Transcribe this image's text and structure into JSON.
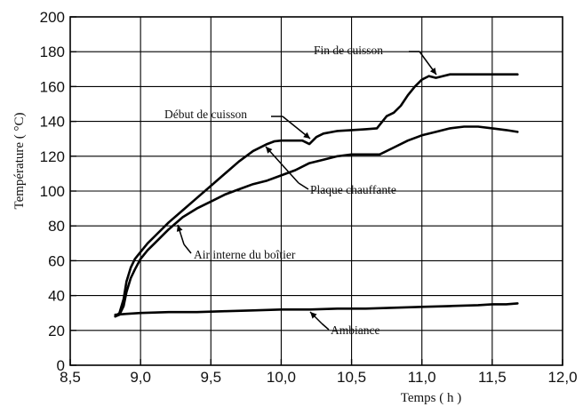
{
  "chart_data": {
    "type": "line",
    "xlabel": "Temps ( h )",
    "ylabel": "Température ( °C)",
    "xlim": [
      8.5,
      12.0
    ],
    "ylim": [
      0,
      200
    ],
    "x_ticks": [
      "8,5",
      "9,0",
      "9,5",
      "10,0",
      "10,5",
      "11,0",
      "11,5",
      "12,0"
    ],
    "y_ticks": [
      "0",
      "20",
      "40",
      "60",
      "80",
      "100",
      "120",
      "140",
      "160",
      "180",
      "200"
    ],
    "grid": true,
    "series": [
      {
        "name": "Air interne du boîtier",
        "x": [
          8.82,
          8.85,
          8.88,
          8.9,
          8.93,
          8.96,
          9.0,
          9.05,
          9.1,
          9.2,
          9.3,
          9.4,
          9.5,
          9.6,
          9.7,
          9.8,
          9.9,
          9.95,
          10.0,
          10.05,
          10.1,
          10.15,
          10.2,
          10.25,
          10.3,
          10.4,
          10.5,
          10.6,
          10.68,
          10.72,
          10.75,
          10.8,
          10.85,
          10.9,
          10.95,
          11.0,
          11.05,
          11.1,
          11.15,
          11.2,
          11.3,
          11.4,
          11.5,
          11.6,
          11.68
        ],
        "y": [
          28,
          30,
          38,
          48,
          56,
          61,
          65,
          70,
          74,
          82,
          89,
          96,
          103,
          110,
          117,
          123,
          127,
          128.5,
          129,
          129,
          129,
          129,
          127,
          131,
          133,
          134.5,
          135,
          135.5,
          136,
          140,
          143,
          145,
          149,
          155,
          160,
          164,
          166,
          165,
          166,
          167,
          167,
          167,
          167,
          167,
          167
        ]
      },
      {
        "name": "Plaque chauffante",
        "x": [
          8.82,
          8.85,
          8.88,
          8.9,
          8.93,
          8.96,
          9.0,
          9.05,
          9.1,
          9.2,
          9.3,
          9.4,
          9.5,
          9.6,
          9.7,
          9.8,
          9.9,
          10.0,
          10.1,
          10.2,
          10.3,
          10.4,
          10.5,
          10.6,
          10.7,
          10.8,
          10.9,
          11.0,
          11.1,
          11.2,
          11.3,
          11.4,
          11.5,
          11.6,
          11.68
        ],
        "y": [
          28,
          29,
          34,
          42,
          50,
          55,
          61,
          66,
          70,
          78,
          85,
          90,
          94,
          98,
          101,
          104,
          106,
          109,
          112,
          116,
          118,
          120,
          121,
          121,
          121,
          125,
          129,
          132,
          134,
          136,
          137,
          137,
          136,
          135,
          134
        ]
      },
      {
        "name": "Ambiance",
        "x": [
          8.82,
          8.9,
          9.0,
          9.2,
          9.4,
          9.6,
          9.8,
          10.0,
          10.2,
          10.4,
          10.6,
          10.8,
          11.0,
          11.2,
          11.4,
          11.5,
          11.6,
          11.68
        ],
        "y": [
          29,
          29.5,
          30,
          30.5,
          30.5,
          31,
          31.5,
          32,
          32,
          32.5,
          32.5,
          33,
          33.5,
          34,
          34.5,
          35,
          35,
          35.5
        ]
      }
    ],
    "annotations": [
      {
        "text": "Fin de cuisson",
        "x": 11.05,
        "y": 166
      },
      {
        "text": "Début de cuisson",
        "x": 10.2,
        "y": 127
      },
      {
        "text": "Plaque chauffante",
        "x": 9.9,
        "y": 126
      },
      {
        "text": "Air interne du  boîtier",
        "x": 9.2,
        "y": 80
      },
      {
        "text": "Ambiance",
        "x": 10.2,
        "y": 32
      }
    ]
  }
}
